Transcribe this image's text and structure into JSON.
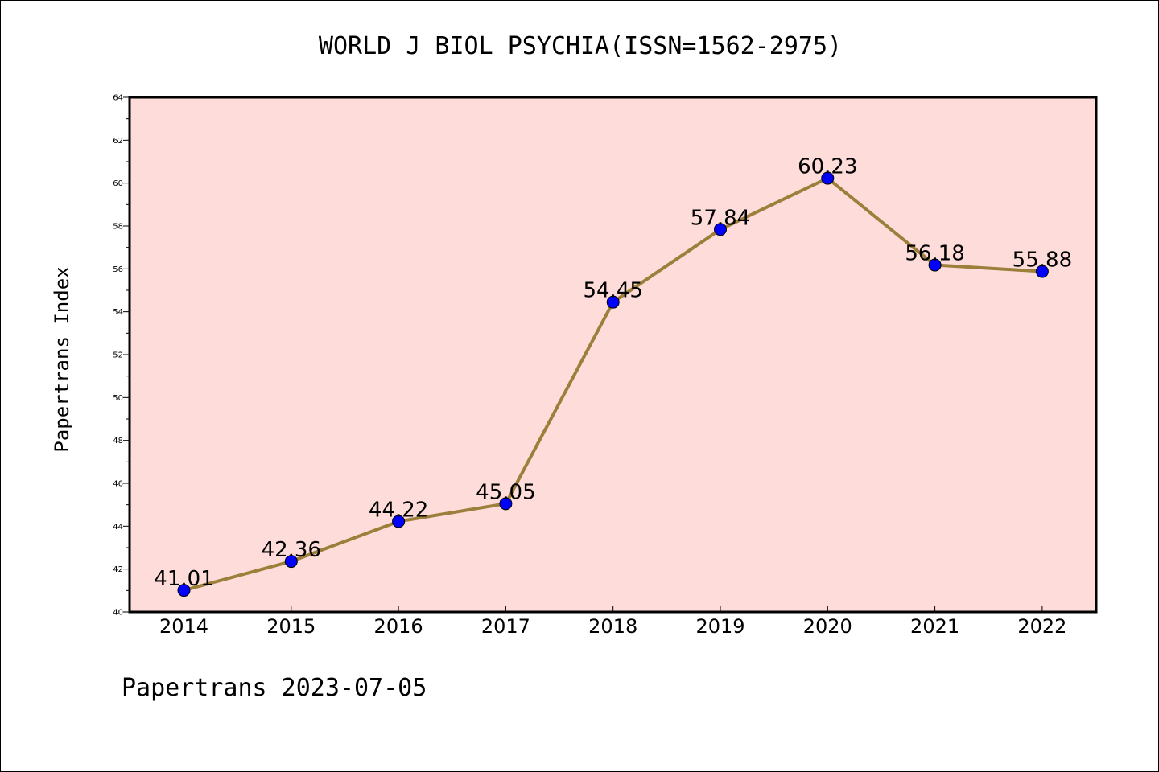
{
  "footer": "Papertrans 2023-07-05",
  "colors": {
    "plot_background": "#fddcd9",
    "line": "#9b7f3a",
    "marker": "#0000ff"
  },
  "chart_data": {
    "type": "line",
    "title": "WORLD J BIOL PSYCHIA(ISSN=1562-2975)",
    "xlabel": "",
    "ylabel": "Papertrans Index",
    "categories": [
      "2014",
      "2015",
      "2016",
      "2017",
      "2018",
      "2019",
      "2020",
      "2021",
      "2022"
    ],
    "series": [
      {
        "values": [
          41.01,
          42.36,
          44.22,
          45.05,
          54.45,
          57.84,
          60.23,
          56.18,
          55.88
        ],
        "labels": [
          "41.01",
          "42.36",
          "44.22",
          "45.05",
          "54.45",
          "57.84",
          "60.23",
          "56.18",
          "55.88"
        ]
      }
    ],
    "ylim": [
      40,
      64
    ],
    "yticks": [
      40,
      42,
      44,
      46,
      48,
      50,
      52,
      54,
      56,
      58,
      60,
      62,
      64
    ],
    "grid": false,
    "legend": "none"
  }
}
